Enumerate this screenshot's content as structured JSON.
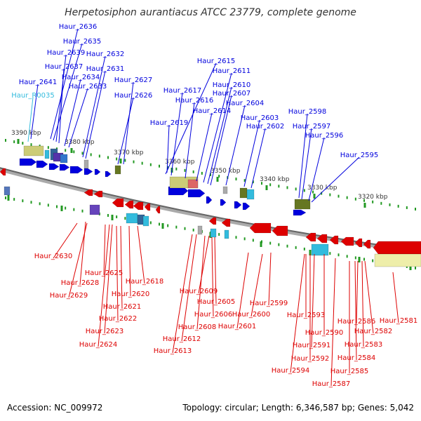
{
  "title": "Herpetosiphon aurantiacus ATCC 23779, complete genome",
  "footer": {
    "accession": "Accession: NC_009972",
    "topology": "Topology: circular; Length: 6,346,587 bp; Genes: 5,042"
  },
  "colors": {
    "forward_gene": "#0000dd",
    "reverse_gene": "#dd0000",
    "rna_gene": "#33bbdd",
    "backbone": "#888888",
    "ruler_tick": "#229922"
  },
  "kbp_labels": [
    "3390 kbp",
    "3380 kbp",
    "3370 kbp",
    "3360 kbp",
    "3350 kbp",
    "3340 kbp",
    "3330 kbp",
    "3320 kbp"
  ],
  "top_labels": [
    "Haur_2636",
    "Haur_2635",
    "Haur_2639",
    "Haur_2632",
    "Haur_2637",
    "Haur_2631",
    "Haur_2634",
    "Haur_2641",
    "Haur_2633",
    "Haur_2627",
    "Haur_R0035",
    "Haur_2626",
    "Haur_2615",
    "Haur_2611",
    "Haur_2610",
    "Haur_2617",
    "Haur_2607",
    "Haur_2616",
    "Haur_2604",
    "Haur_2614",
    "Haur_2603",
    "Haur_2619",
    "Haur_2602",
    "Haur_2598",
    "Haur_2597",
    "Haur_2596",
    "Haur_2595"
  ],
  "bottom_labels": [
    "Haur_2630",
    "Haur_2625",
    "Haur_2618",
    "Haur_2628",
    "Haur_2620",
    "Haur_2629",
    "Haur_2621",
    "Haur_2622",
    "Haur_2623",
    "Haur_2624",
    "Haur_2609",
    "Haur_2605",
    "Haur_2606",
    "Haur_2608",
    "Haur_2612",
    "Haur_2613",
    "Haur_2600",
    "Haur_2601",
    "Haur_2599",
    "Haur_2593",
    "Haur_2590",
    "Haur_2591",
    "Haur_2592",
    "Haur_2594",
    "Haur_2586",
    "Haur_2582",
    "Haur_2581",
    "Haur_2583",
    "Haur_2584",
    "Haur_2585",
    "Haur_2587"
  ]
}
